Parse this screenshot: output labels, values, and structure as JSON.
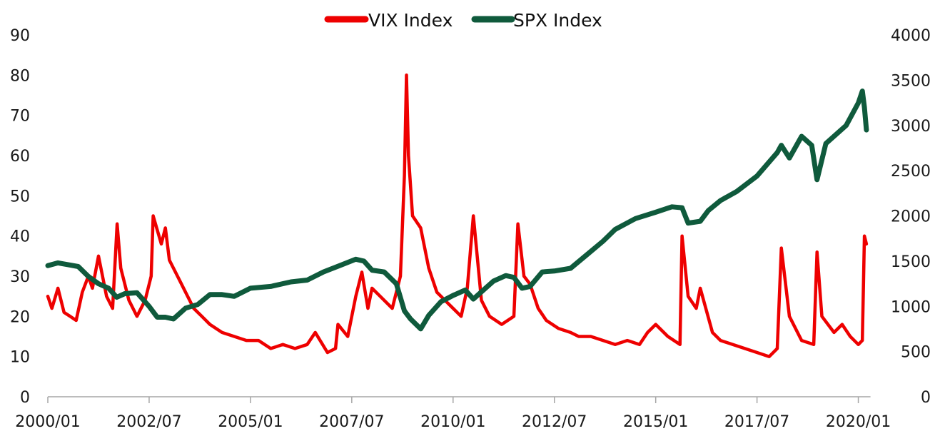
{
  "chart_data": {
    "type": "line",
    "colors": {
      "vix": "#ee0000",
      "spx": "#0f5a3c",
      "axis": "#a6a6a6"
    },
    "legend": {
      "placement": "top-center"
    },
    "grid": false,
    "x_axis": {
      "tick_labels": [
        "2000/01",
        "2002/07",
        "2005/01",
        "2007/07",
        "2010/01",
        "2012/07",
        "2015/01",
        "2017/07",
        "2020/01"
      ],
      "tick_values": [
        2000.0,
        2002.5,
        2005.0,
        2007.5,
        2010.0,
        2012.5,
        2015.0,
        2017.5,
        2020.0
      ],
      "range": [
        2000.0,
        2020.3
      ]
    },
    "y_left": {
      "ticks": [
        0,
        10,
        20,
        30,
        40,
        50,
        60,
        70,
        80,
        90
      ],
      "range": [
        0,
        90
      ]
    },
    "y_right": {
      "ticks": [
        0,
        500,
        1000,
        1500,
        2000,
        2500,
        3000,
        3500,
        4000
      ],
      "range": [
        0,
        4000
      ]
    },
    "series": [
      {
        "name": "VIX Index",
        "axis": "left",
        "x": [
          2000.0,
          2000.1,
          2000.25,
          2000.4,
          2000.55,
          2000.7,
          2000.85,
          2001.0,
          2001.1,
          2001.25,
          2001.45,
          2001.6,
          2001.71,
          2001.8,
          2002.0,
          2002.2,
          2002.4,
          2002.55,
          2002.6,
          2002.8,
          2002.9,
          2003.0,
          2003.2,
          2003.4,
          2003.6,
          2003.8,
          2004.0,
          2004.3,
          2004.6,
          2004.9,
          2005.2,
          2005.5,
          2005.8,
          2006.1,
          2006.4,
          2006.6,
          2006.9,
          2007.1,
          2007.16,
          2007.4,
          2007.6,
          2007.75,
          2007.9,
          2008.0,
          2008.2,
          2008.5,
          2008.7,
          2008.8,
          2008.85,
          2008.9,
          2009.0,
          2009.2,
          2009.4,
          2009.6,
          2009.8,
          2010.0,
          2010.2,
          2010.35,
          2010.5,
          2010.7,
          2010.9,
          2011.2,
          2011.5,
          2011.6,
          2011.75,
          2011.9,
          2012.1,
          2012.3,
          2012.6,
          2012.9,
          2013.1,
          2013.4,
          2013.7,
          2014.0,
          2014.3,
          2014.6,
          2014.8,
          2015.0,
          2015.3,
          2015.6,
          2015.65,
          2015.8,
          2016.0,
          2016.1,
          2016.4,
          2016.6,
          2016.9,
          2017.2,
          2017.5,
          2017.8,
          2018.0,
          2018.1,
          2018.3,
          2018.6,
          2018.9,
          2018.98,
          2019.1,
          2019.4,
          2019.6,
          2019.8,
          2020.0,
          2020.1,
          2020.15,
          2020.2
        ],
        "y": [
          25,
          22,
          27,
          21,
          20,
          19,
          26,
          30,
          27,
          35,
          25,
          22,
          43,
          32,
          24,
          20,
          24,
          30,
          45,
          38,
          42,
          34,
          30,
          26,
          22,
          20,
          18,
          16,
          15,
          14,
          14,
          12,
          13,
          12,
          13,
          16,
          11,
          12,
          18,
          15,
          25,
          31,
          22,
          27,
          25,
          22,
          30,
          55,
          80,
          60,
          45,
          42,
          32,
          26,
          24,
          22,
          20,
          27,
          45,
          24,
          20,
          18,
          20,
          43,
          30,
          28,
          22,
          19,
          17,
          16,
          15,
          15,
          14,
          13,
          14,
          13,
          16,
          18,
          15,
          13,
          40,
          25,
          22,
          27,
          16,
          14,
          13,
          12,
          11,
          10,
          12,
          37,
          20,
          14,
          13,
          36,
          20,
          16,
          18,
          15,
          13,
          14,
          40,
          38
        ]
      },
      {
        "name": "SPX Index",
        "axis": "right",
        "x": [
          2000.0,
          2000.25,
          2000.5,
          2000.75,
          2001.0,
          2001.25,
          2001.5,
          2001.7,
          2001.9,
          2002.2,
          2002.5,
          2002.7,
          2002.9,
          2003.1,
          2003.4,
          2003.7,
          2004.0,
          2004.3,
          2004.6,
          2005.0,
          2005.5,
          2006.0,
          2006.4,
          2006.8,
          2007.2,
          2007.6,
          2007.8,
          2008.0,
          2008.3,
          2008.6,
          2008.8,
          2008.95,
          2009.2,
          2009.4,
          2009.7,
          2010.0,
          2010.3,
          2010.5,
          2010.8,
          2011.0,
          2011.3,
          2011.5,
          2011.7,
          2011.9,
          2012.2,
          2012.5,
          2012.9,
          2013.3,
          2013.7,
          2014.0,
          2014.5,
          2015.0,
          2015.4,
          2015.65,
          2015.8,
          2016.1,
          2016.3,
          2016.6,
          2017.0,
          2017.5,
          2018.0,
          2018.1,
          2018.3,
          2018.6,
          2018.85,
          2018.98,
          2019.2,
          2019.5,
          2019.7,
          2020.0,
          2020.1,
          2020.15,
          2020.2
        ],
        "y": [
          1450,
          1480,
          1460,
          1440,
          1330,
          1250,
          1200,
          1100,
          1140,
          1150,
          1000,
          880,
          880,
          860,
          980,
          1020,
          1130,
          1130,
          1110,
          1200,
          1220,
          1270,
          1290,
          1380,
          1450,
          1520,
          1500,
          1400,
          1380,
          1250,
          950,
          860,
          750,
          900,
          1050,
          1120,
          1180,
          1080,
          1200,
          1280,
          1340,
          1320,
          1200,
          1220,
          1380,
          1390,
          1420,
          1570,
          1720,
          1850,
          1970,
          2040,
          2100,
          2090,
          1920,
          1940,
          2060,
          2170,
          2270,
          2440,
          2700,
          2780,
          2640,
          2880,
          2780,
          2400,
          2800,
          2920,
          3000,
          3250,
          3380,
          3200,
          2950
        ]
      }
    ]
  }
}
